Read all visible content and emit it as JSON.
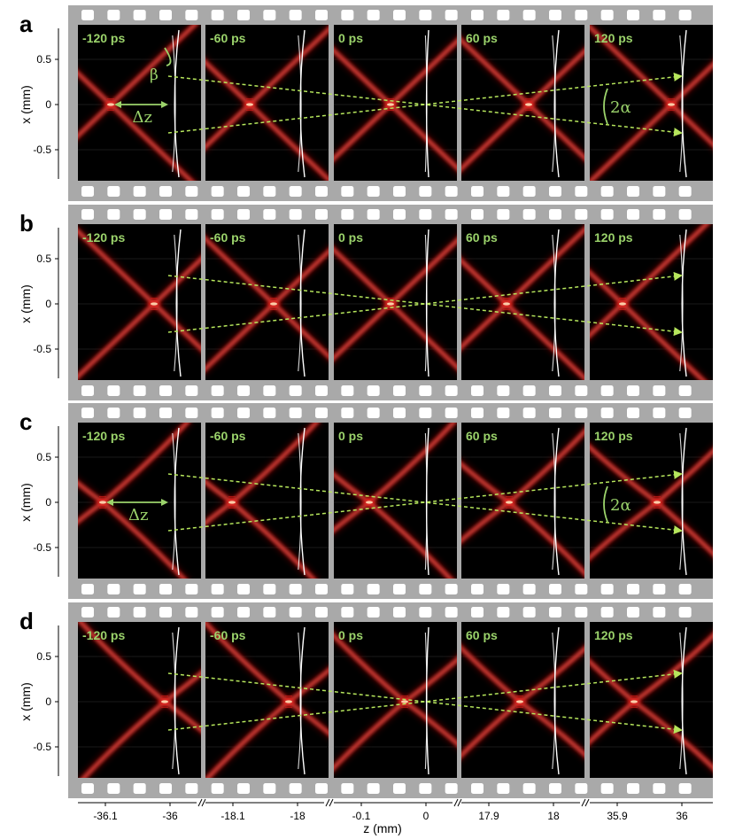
{
  "colors": {
    "film": "#a9a9a9",
    "hole": "#ffffff",
    "frame_bg": "#000000",
    "time_label": "#9bd36b",
    "arrow": "#b6e65c",
    "annotation": "#9bd36b",
    "lens": "#ffffff",
    "beam_core": "#ffb0a0",
    "beam_mid": "#d8201c",
    "beam_edge": "#600606"
  },
  "y_axis": {
    "label": "x (mm)",
    "ticks": [
      "0.5",
      "0",
      "-0.5"
    ]
  },
  "x_axis": {
    "label": "z (mm)",
    "tick_groups": [
      [
        "-36.1",
        "-36"
      ],
      [
        "-18.1",
        "-18"
      ],
      [
        "-0.1",
        "0"
      ],
      [
        "17.9",
        "18"
      ],
      [
        "35.9",
        "36"
      ]
    ]
  },
  "time_labels": [
    "-120 ps",
    "-60 ps",
    "0 ps",
    "60 ps",
    "120 ps"
  ],
  "panels": [
    {
      "id": "a",
      "letter": "a",
      "annotations": {
        "beta": "β",
        "dz": "Δz",
        "alpha": "2α"
      }
    },
    {
      "id": "b",
      "letter": "b",
      "annotations": {}
    },
    {
      "id": "c",
      "letter": "c",
      "annotations": {
        "dz": "Δz",
        "alpha": "2α"
      }
    },
    {
      "id": "d",
      "letter": "d",
      "annotations": {}
    }
  ]
}
